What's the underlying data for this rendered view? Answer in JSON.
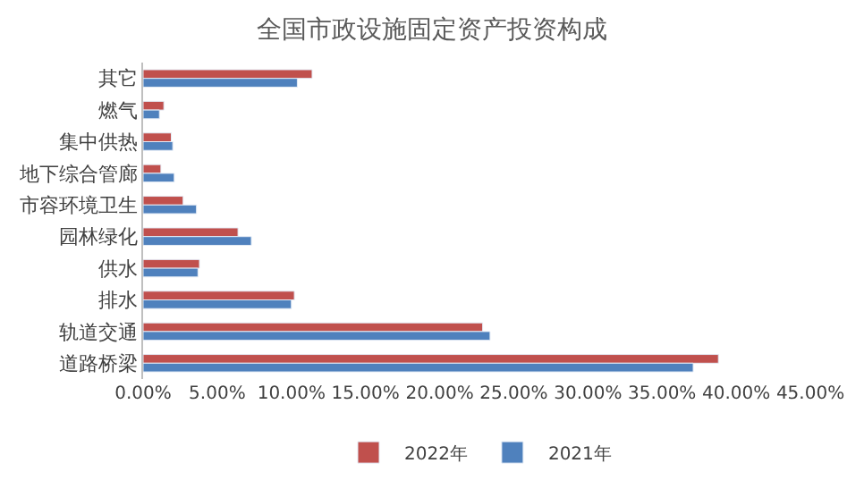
{
  "chart_data": {
    "type": "bar",
    "orientation": "horizontal",
    "title": "全国市政设施固定资产投资构成",
    "categories": [
      "其它",
      "燃气",
      "集中供热",
      "地下综合管廊",
      "市容环境卫生",
      "园林绿化",
      "供水",
      "排水",
      "轨道交通",
      "道路桥梁"
    ],
    "series": [
      {
        "name": "2022年",
        "color": "#c0504d",
        "values": [
          11.4,
          1.4,
          1.9,
          1.2,
          2.7,
          6.4,
          3.8,
          10.2,
          22.9,
          38.8
        ]
      },
      {
        "name": "2021年",
        "color": "#4f81bd",
        "values": [
          10.4,
          1.1,
          2.0,
          2.1,
          3.6,
          7.3,
          3.7,
          10.0,
          23.4,
          37.1
        ]
      }
    ],
    "xlim": [
      0,
      45
    ],
    "xticks": [
      {
        "value": 0,
        "label": "0.00%"
      },
      {
        "value": 5,
        "label": "5.00%"
      },
      {
        "value": 10,
        "label": "10.00%"
      },
      {
        "value": 15,
        "label": "15.00%"
      },
      {
        "value": 20,
        "label": "20.00%"
      },
      {
        "value": 25,
        "label": "25.00%"
      },
      {
        "value": 30,
        "label": "30.00%"
      },
      {
        "value": 35,
        "label": "35.00%"
      },
      {
        "value": 40,
        "label": "40.00%"
      },
      {
        "value": 45,
        "label": "45.00%"
      }
    ],
    "legend": "bottom"
  }
}
